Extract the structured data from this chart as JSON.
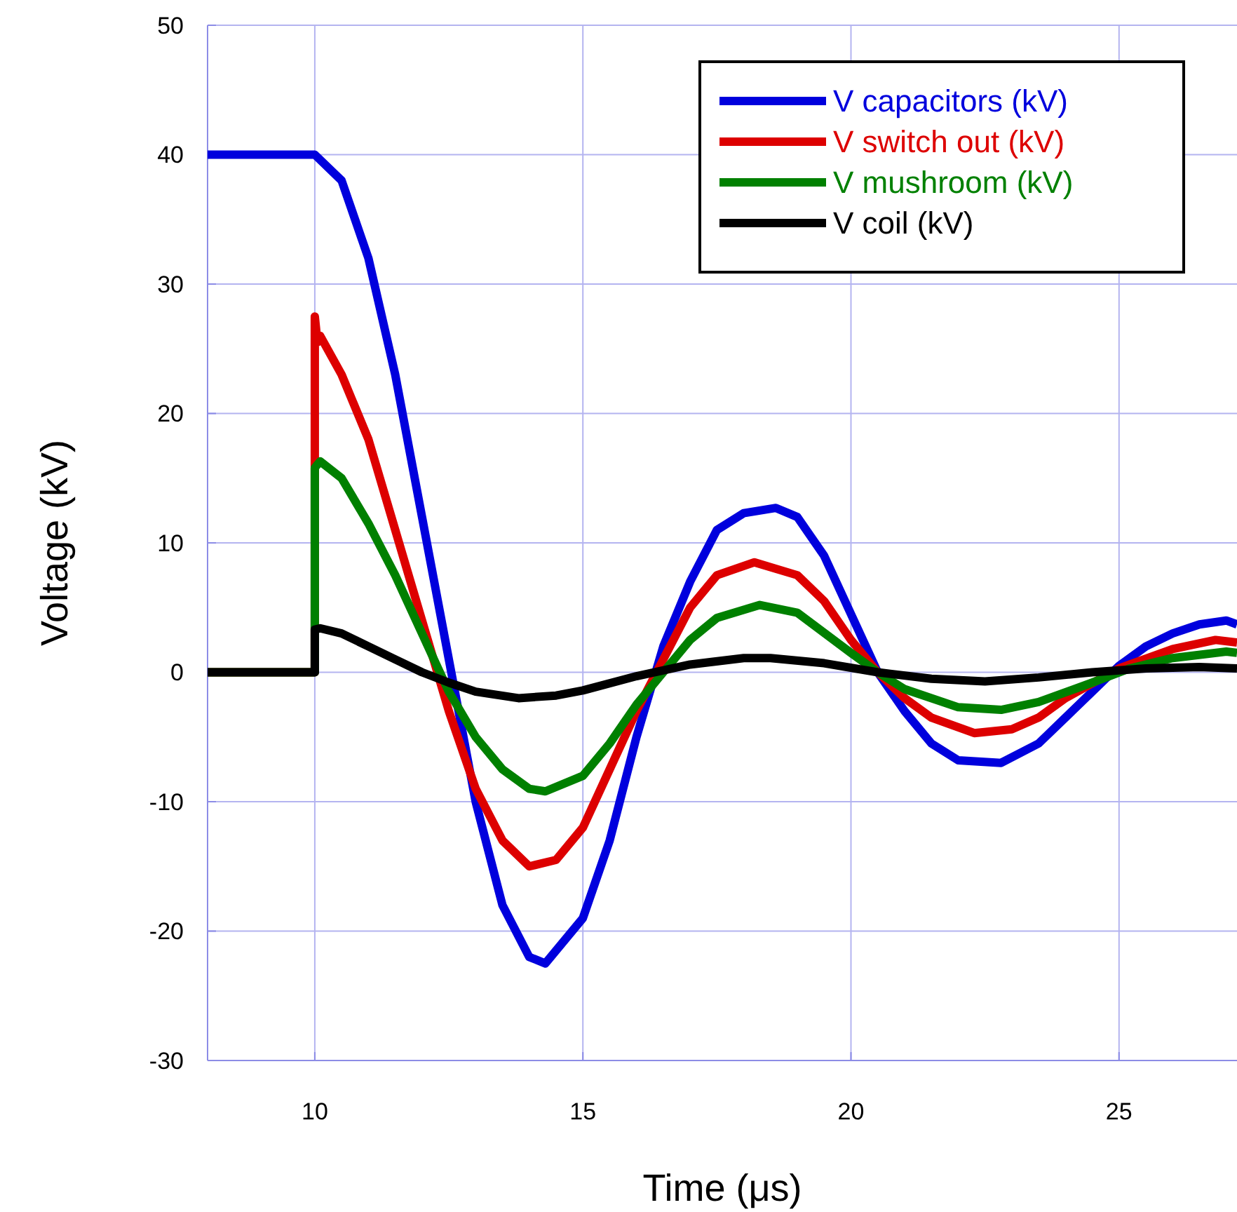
{
  "chart_data": {
    "type": "line",
    "xlabel": "Time (μs)",
    "ylabel": "Voltage (kV)",
    "xlim": [
      8,
      27.2
    ],
    "ylim": [
      -30,
      50
    ],
    "xticks": [
      10,
      15,
      20,
      25
    ],
    "yticks": [
      -30,
      -20,
      -10,
      0,
      10,
      20,
      30,
      40,
      50
    ],
    "grid": true,
    "legend": "top right",
    "line_style": "solid",
    "marker": "none",
    "series": [
      {
        "name": "V capacitors (kV)",
        "color": "#0000dd",
        "x": [
          8,
          10,
          10.5,
          11,
          11.5,
          12,
          12.5,
          13,
          13.5,
          14,
          14.3,
          15,
          15.5,
          16,
          16.5,
          17,
          17.5,
          18,
          18.6,
          19,
          19.5,
          20,
          20.5,
          21,
          21.5,
          22,
          22.8,
          23.5,
          24,
          24.5,
          25,
          25.5,
          26,
          26.5,
          27,
          27.2
        ],
        "values": [
          40,
          40,
          38,
          32,
          23,
          12,
          1,
          -10,
          -18,
          -22,
          -22.5,
          -19,
          -13,
          -5,
          2,
          7,
          11,
          12.3,
          12.7,
          12,
          9,
          4.5,
          0,
          -3,
          -5.5,
          -6.8,
          -7,
          -5.5,
          -3.5,
          -1.5,
          0.5,
          2,
          3,
          3.7,
          4,
          3.7
        ]
      },
      {
        "name": "V switch out (kV)",
        "color": "#dd0000",
        "x": [
          8,
          10,
          10,
          10.05,
          10.1,
          10.5,
          11,
          11.5,
          12,
          12.5,
          13,
          13.5,
          14,
          14.5,
          15,
          15.5,
          16,
          16.5,
          17,
          17.5,
          18.2,
          19,
          19.5,
          20,
          20.5,
          21,
          21.5,
          22.3,
          23,
          23.5,
          24,
          25,
          26,
          26.8,
          27.2
        ],
        "values": [
          0,
          0,
          27.5,
          25.5,
          26,
          23,
          18,
          11,
          4,
          -3,
          -9,
          -13,
          -15,
          -14.5,
          -12,
          -7.5,
          -3,
          1,
          5,
          7.5,
          8.5,
          7.5,
          5.5,
          2.5,
          0,
          -2,
          -3.5,
          -4.7,
          -4.4,
          -3.5,
          -2,
          0.3,
          1.8,
          2.5,
          2.3
        ]
      },
      {
        "name": "V mushroom (kV)",
        "color": "#008000",
        "x": [
          8,
          10,
          10,
          10.1,
          10.5,
          11,
          11.5,
          12,
          12.5,
          13,
          13.5,
          14,
          14.3,
          15,
          15.5,
          16,
          16.5,
          17,
          17.5,
          18.3,
          19,
          20,
          20.5,
          21,
          22,
          22.8,
          23.5,
          24.5,
          25.2,
          26,
          27,
          27.2
        ],
        "values": [
          0,
          0,
          15.8,
          16.3,
          15,
          11.5,
          7.5,
          3,
          -1.5,
          -5,
          -7.5,
          -9,
          -9.2,
          -8,
          -5.5,
          -2.5,
          0,
          2.5,
          4.2,
          5.2,
          4.6,
          1.5,
          0,
          -1.3,
          -2.7,
          -2.9,
          -2.3,
          -0.8,
          0.3,
          1.1,
          1.6,
          1.5
        ]
      },
      {
        "name": "V coil (kV)",
        "color": "#000000",
        "x": [
          8,
          10,
          10,
          10.1,
          10.5,
          11,
          11.5,
          12,
          12.5,
          13,
          13.8,
          14.5,
          15,
          16,
          17,
          18,
          18.5,
          19.5,
          20.5,
          21.5,
          22.5,
          23.5,
          24.5,
          25.5,
          26.5,
          27.2
        ],
        "values": [
          0,
          0,
          3.3,
          3.4,
          3,
          2,
          1,
          0,
          -0.8,
          -1.5,
          -2,
          -1.8,
          -1.4,
          -0.3,
          0.6,
          1.1,
          1.1,
          0.7,
          0,
          -0.5,
          -0.7,
          -0.4,
          0,
          0.3,
          0.4,
          0.3
        ]
      }
    ]
  }
}
